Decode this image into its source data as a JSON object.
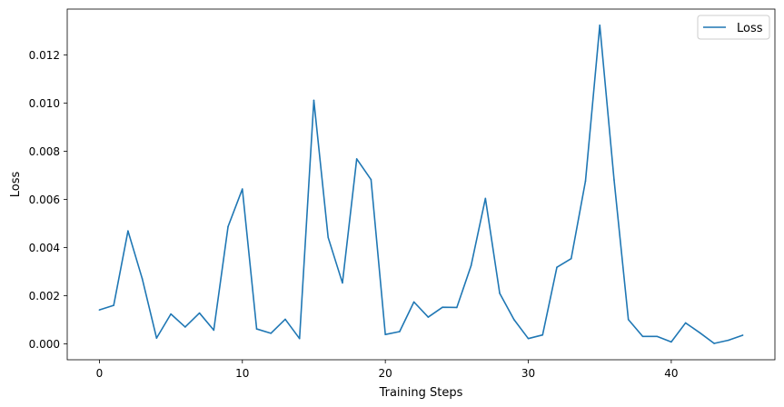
{
  "chart_data": {
    "type": "line",
    "title": "",
    "xlabel": "Training Steps",
    "ylabel": "Loss",
    "xlim": [
      -2.25,
      47.25
    ],
    "ylim": [
      -0.00066,
      0.0139
    ],
    "xticks": [
      0,
      10,
      20,
      30,
      40
    ],
    "xtick_labels": [
      "0",
      "10",
      "20",
      "30",
      "40"
    ],
    "yticks": [
      0.0,
      0.002,
      0.004,
      0.006,
      0.008,
      0.01,
      0.012
    ],
    "ytick_labels": [
      "0.000",
      "0.002",
      "0.004",
      "0.006",
      "0.008",
      "0.010",
      "0.012"
    ],
    "grid": false,
    "legend_position": "top-right",
    "series": [
      {
        "name": "Loss",
        "color": "#1f77b4",
        "x": [
          0,
          1,
          2,
          3,
          4,
          5,
          6,
          7,
          8,
          9,
          10,
          11,
          12,
          13,
          14,
          15,
          16,
          17,
          18,
          19,
          20,
          21,
          22,
          23,
          24,
          25,
          26,
          27,
          28,
          29,
          30,
          31,
          32,
          33,
          34,
          35,
          36,
          37,
          38,
          39,
          40,
          41,
          42,
          43,
          44,
          45
        ],
        "y": [
          0.00141,
          0.0016,
          0.00469,
          0.0027,
          0.00024,
          0.00124,
          0.0007,
          0.00128,
          0.00057,
          0.00487,
          0.00643,
          0.00062,
          0.00044,
          0.00102,
          0.00022,
          0.01011,
          0.00442,
          0.00253,
          0.00768,
          0.00682,
          0.00039,
          0.00051,
          0.00174,
          0.00111,
          0.00152,
          0.00151,
          0.00325,
          0.00604,
          0.0021,
          0.00101,
          0.00022,
          0.00037,
          0.00318,
          0.00354,
          0.00676,
          0.01323,
          0.00681,
          0.00101,
          0.00031,
          0.00031,
          8e-05,
          0.00087,
          0.00046,
          2e-05,
          0.00015,
          0.00036
        ]
      }
    ]
  }
}
